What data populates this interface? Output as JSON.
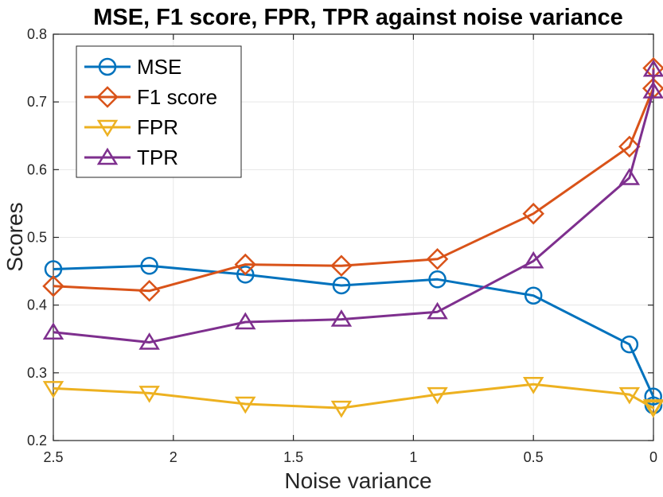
{
  "chart_data": {
    "type": "line",
    "title": "MSE, F1 score, FPR, TPR against noise variance",
    "xlabel": "Noise variance",
    "ylabel": "Scores",
    "xlim": [
      2.5,
      0
    ],
    "x_reversed": true,
    "ylim": [
      0.2,
      0.8
    ],
    "xticks": [
      "2.5",
      "2",
      "1.5",
      "1",
      "0.5",
      "0"
    ],
    "xtick_values": [
      2.5,
      2,
      1.5,
      1,
      0.5,
      0
    ],
    "yticks": [
      "0.2",
      "0.3",
      "0.4",
      "0.5",
      "0.6",
      "0.7",
      "0.8"
    ],
    "ytick_values": [
      0.2,
      0.3,
      0.4,
      0.5,
      0.6,
      0.7,
      0.8
    ],
    "grid": true,
    "legend_position": "top-left",
    "x": [
      2.5,
      2.1,
      1.7,
      1.3,
      0.9,
      0.5,
      0.1,
      0.001,
      0
    ],
    "series": [
      {
        "name": "MSE",
        "marker": "circle",
        "color": "#0072BD",
        "values": [
          0.453,
          0.458,
          0.445,
          0.429,
          0.438,
          0.414,
          0.342,
          0.265,
          0.252
        ]
      },
      {
        "name": "F1 score",
        "marker": "diamond",
        "color": "#D95319",
        "values": [
          0.428,
          0.421,
          0.46,
          0.458,
          0.468,
          0.535,
          0.634,
          0.72,
          0.75
        ]
      },
      {
        "name": "FPR",
        "marker": "triangle-down",
        "color": "#EDB120",
        "values": [
          0.277,
          0.27,
          0.254,
          0.248,
          0.268,
          0.283,
          0.268,
          0.248,
          0.25
        ]
      },
      {
        "name": "TPR",
        "marker": "triangle-up",
        "color": "#7E2F8E",
        "values": [
          0.36,
          0.345,
          0.375,
          0.379,
          0.39,
          0.465,
          0.588,
          0.716,
          0.748
        ]
      }
    ]
  }
}
